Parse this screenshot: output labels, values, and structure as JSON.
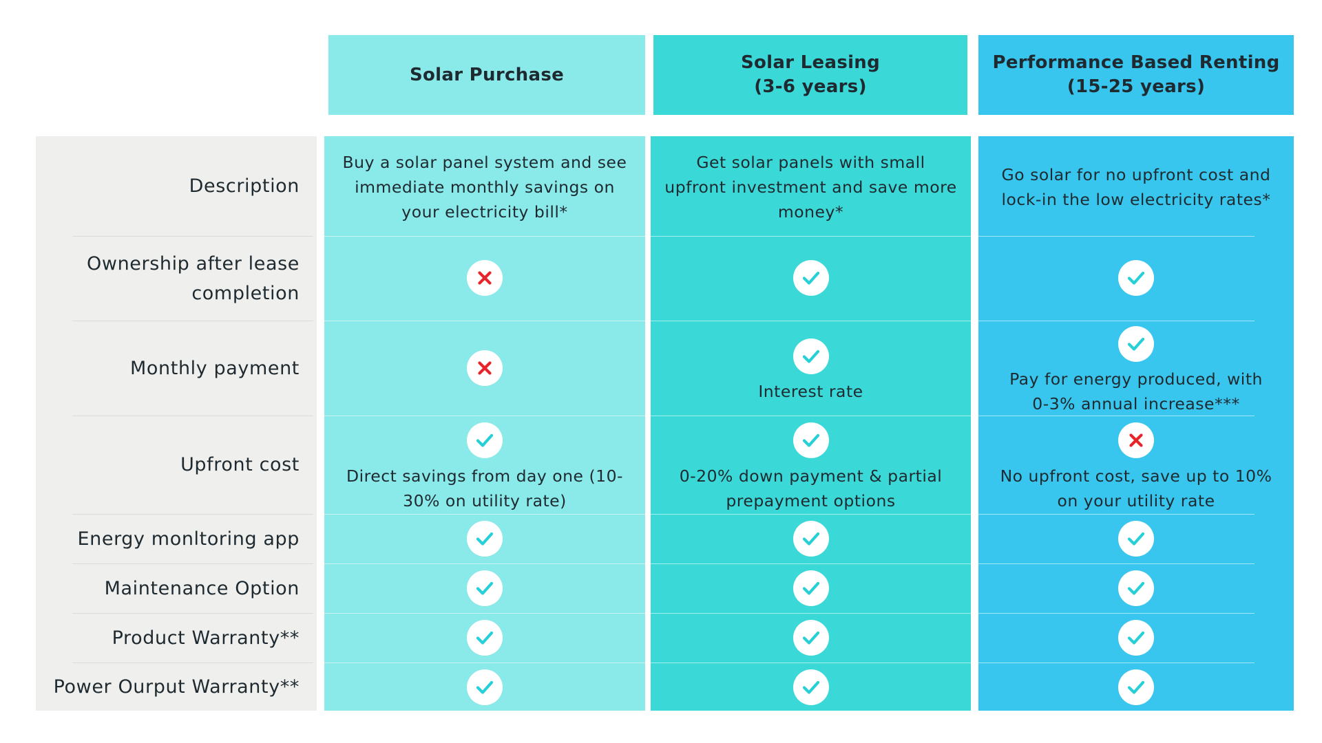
{
  "columns": [
    {
      "id": "purchase",
      "title_line1": "Solar Purchase",
      "title_line2": "",
      "color": "#8ae9e9"
    },
    {
      "id": "leasing",
      "title_line1": "Solar Leasing",
      "title_line2": "(3-6 years)",
      "color": "#3bd8d8"
    },
    {
      "id": "renting",
      "title_line1": "Performance Based Renting",
      "title_line2": "(15-25 years)",
      "color": "#38c6ee"
    }
  ],
  "rows": [
    {
      "label_line1": "Description",
      "label_line2": "",
      "cells": [
        {
          "icon": "",
          "text": [
            "Buy a solar panel system and see",
            "immediate monthly savings on",
            "your electricity bill*"
          ]
        },
        {
          "icon": "",
          "text": [
            "Get solar panels with small",
            "upfront investment and save more",
            "money*"
          ]
        },
        {
          "icon": "",
          "text": [
            "Go solar for no upfront cost and",
            "lock-in the low electricity rates*"
          ]
        }
      ]
    },
    {
      "label_line1": "Ownership after lease",
      "label_line2": "completion",
      "cells": [
        {
          "icon": "cross-icon",
          "text": []
        },
        {
          "icon": "check-icon",
          "text": []
        },
        {
          "icon": "check-icon",
          "text": []
        }
      ]
    },
    {
      "label_line1": "Monthly payment",
      "label_line2": "",
      "cells": [
        {
          "icon": "cross-icon",
          "text": []
        },
        {
          "icon": "check-icon",
          "text": [
            "Interest rate"
          ]
        },
        {
          "icon": "check-icon",
          "text": [
            "Pay for energy produced, with",
            "0-3% annual increase***"
          ]
        }
      ]
    },
    {
      "label_line1": "Upfront cost",
      "label_line2": "",
      "cells": [
        {
          "icon": "check-icon",
          "text": [
            "Direct savings from day one (10-",
            "30% on utility rate)"
          ]
        },
        {
          "icon": "check-icon",
          "text": [
            "0-20% down payment & partial",
            "prepayment options"
          ]
        },
        {
          "icon": "cross-icon",
          "text": [
            "No upfront cost, save up to 10%",
            "on your utility rate"
          ]
        }
      ]
    },
    {
      "label_line1": "Energy monltoring app",
      "label_line2": "",
      "cells": [
        {
          "icon": "check-icon",
          "text": []
        },
        {
          "icon": "check-icon",
          "text": []
        },
        {
          "icon": "check-icon",
          "text": []
        }
      ]
    },
    {
      "label_line1": "Maintenance Option",
      "label_line2": "",
      "cells": [
        {
          "icon": "check-icon",
          "text": []
        },
        {
          "icon": "check-icon",
          "text": []
        },
        {
          "icon": "check-icon",
          "text": []
        }
      ]
    },
    {
      "label_line1": "Product Warranty**",
      "label_line2": "",
      "cells": [
        {
          "icon": "check-icon",
          "text": []
        },
        {
          "icon": "check-icon",
          "text": []
        },
        {
          "icon": "check-icon",
          "text": []
        }
      ]
    },
    {
      "label_line1": "Power Ourput  Warranty**",
      "label_line2": "",
      "cells": [
        {
          "icon": "check-icon",
          "text": []
        },
        {
          "icon": "check-icon",
          "text": []
        },
        {
          "icon": "check-icon",
          "text": []
        }
      ]
    }
  ],
  "colors": {
    "label_panel": "#eff0ed",
    "check": "#27cfd6",
    "cross": "#e8242b",
    "text": "#1f2a30"
  }
}
